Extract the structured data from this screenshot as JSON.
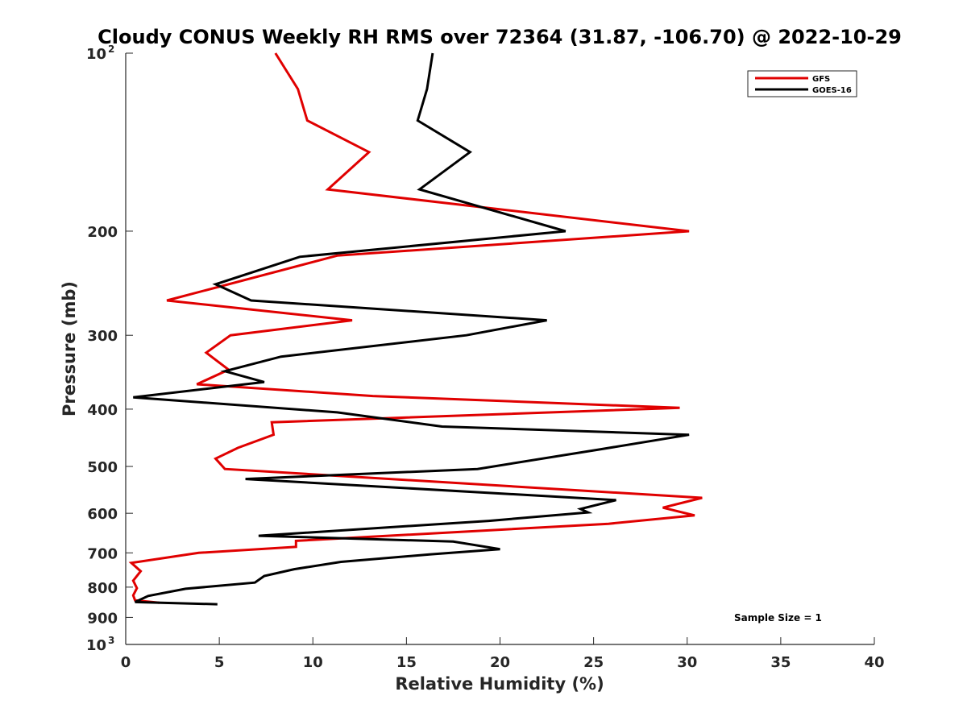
{
  "chart_data": {
    "type": "line",
    "title": "Cloudy CONUS Weekly RH RMS over 72364 (31.87, -106.70) @ 2022-10-29",
    "xlabel": "Relative Humidity (%)",
    "ylabel": "Pressure (mb)",
    "xlim": [
      0,
      40
    ],
    "ylim": [
      100,
      1000
    ],
    "y_scale": "log",
    "y_inverted": true,
    "x_ticks": [
      "0",
      "5",
      "10",
      "15",
      "20",
      "25",
      "30",
      "35",
      "40"
    ],
    "y_ticks": [
      {
        "value": 100,
        "base": "10",
        "exp": "2"
      },
      {
        "value": 200,
        "label": "200"
      },
      {
        "value": 300,
        "label": "300"
      },
      {
        "value": 400,
        "label": "400"
      },
      {
        "value": 500,
        "label": "500"
      },
      {
        "value": 600,
        "label": "600"
      },
      {
        "value": 700,
        "label": "700"
      },
      {
        "value": 800,
        "label": "800"
      },
      {
        "value": 900,
        "label": "900"
      },
      {
        "value": 1000,
        "base": "10",
        "exp": "3"
      }
    ],
    "grid": false,
    "legend_position": "top-right",
    "annotation": "Sample Size = 1",
    "series": [
      {
        "name": "GFS",
        "color": "#e00000",
        "points": [
          [
            8.0,
            100
          ],
          [
            9.2,
            115
          ],
          [
            9.7,
            130
          ],
          [
            13.0,
            147
          ],
          [
            10.8,
            170
          ],
          [
            30.1,
            200
          ],
          [
            11.3,
            220
          ],
          [
            2.2,
            262
          ],
          [
            12.1,
            283
          ],
          [
            5.6,
            300
          ],
          [
            4.3,
            321
          ],
          [
            5.5,
            343
          ],
          [
            3.8,
            363
          ],
          [
            13.2,
            380
          ],
          [
            29.6,
            398
          ],
          [
            7.8,
            421
          ],
          [
            7.9,
            442
          ],
          [
            6.0,
            465
          ],
          [
            4.8,
            485
          ],
          [
            5.3,
            505
          ],
          [
            30.8,
            565
          ],
          [
            28.7,
            587
          ],
          [
            30.4,
            605
          ],
          [
            25.8,
            625
          ],
          [
            9.1,
            668
          ],
          [
            9.1,
            684
          ],
          [
            3.9,
            700
          ],
          [
            0.3,
            728
          ],
          [
            0.8,
            752
          ],
          [
            0.4,
            780
          ],
          [
            0.6,
            803
          ],
          [
            0.4,
            826
          ],
          [
            0.5,
            842
          ],
          [
            1.8,
            850
          ]
        ]
      },
      {
        "name": "GOES-16",
        "color": "#000000",
        "points": [
          [
            16.4,
            100
          ],
          [
            16.1,
            115
          ],
          [
            15.6,
            130
          ],
          [
            18.4,
            147
          ],
          [
            15.7,
            170
          ],
          [
            23.5,
            200
          ],
          [
            9.3,
            221
          ],
          [
            4.8,
            246
          ],
          [
            6.7,
            262
          ],
          [
            22.5,
            283
          ],
          [
            18.2,
            300
          ],
          [
            8.3,
            326
          ],
          [
            5.3,
            345
          ],
          [
            7.4,
            360
          ],
          [
            0.4,
            382
          ],
          [
            11.3,
            405
          ],
          [
            16.9,
            428
          ],
          [
            30.1,
            442
          ],
          [
            25.3,
            468
          ],
          [
            18.8,
            505
          ],
          [
            6.4,
            525
          ],
          [
            26.2,
            570
          ],
          [
            24.3,
            590
          ],
          [
            24.7,
            598
          ],
          [
            19.4,
            618
          ],
          [
            7.1,
            655
          ],
          [
            17.5,
            670
          ],
          [
            20.0,
            690
          ],
          [
            16.3,
            704
          ],
          [
            11.5,
            725
          ],
          [
            9.0,
            746
          ],
          [
            7.4,
            766
          ],
          [
            6.9,
            786
          ],
          [
            3.2,
            805
          ],
          [
            1.2,
            828
          ],
          [
            0.5,
            848
          ],
          [
            4.9,
            855
          ]
        ]
      }
    ]
  }
}
